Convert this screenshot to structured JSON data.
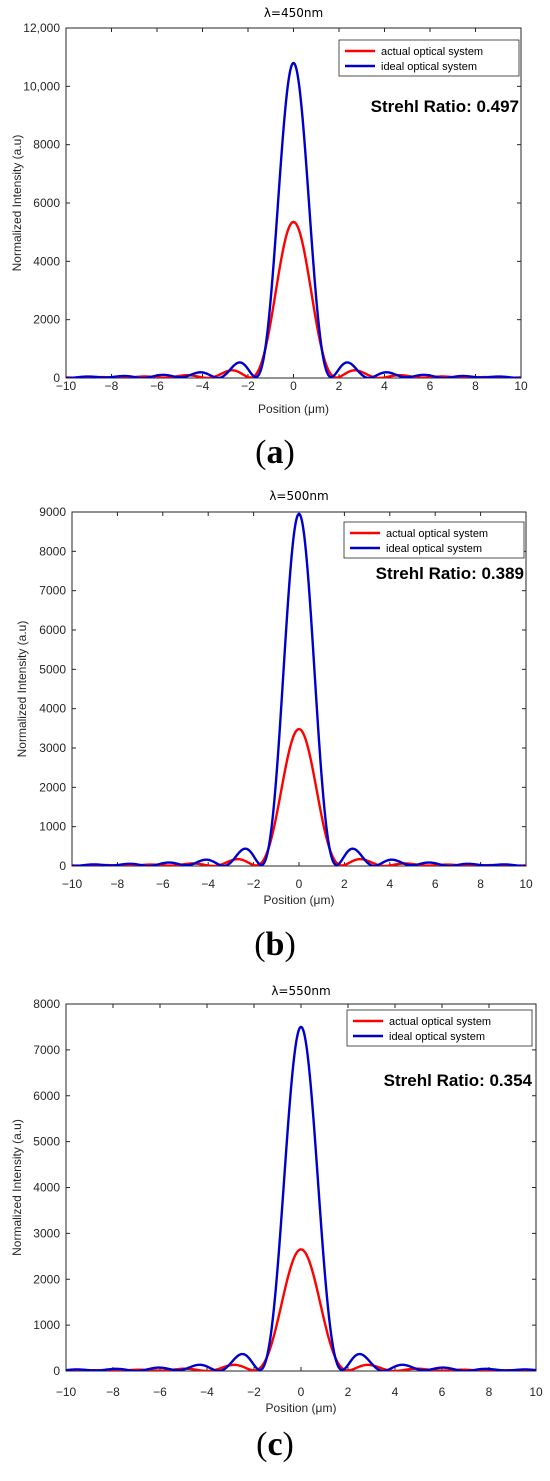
{
  "chart_data": [
    {
      "type": "line",
      "title": "λ=450nm",
      "xlabel": "Position (μm)",
      "ylabel": "Normalized Intensity (a.u)",
      "xlim": [
        -10,
        10
      ],
      "ylim": [
        0,
        12000
      ],
      "xticks": [
        -10,
        -8,
        -6,
        -4,
        -2,
        0,
        2,
        4,
        6,
        8,
        10
      ],
      "yticks": [
        0,
        2000,
        4000,
        6000,
        8000,
        10000,
        12000
      ],
      "ytick_labels": [
        "0",
        "2000",
        "4000",
        "6000",
        "8000",
        "10,000",
        "12,000"
      ],
      "annotation": "Strehl Ratio: 0.497",
      "caption": "a",
      "legend": "top-right",
      "series": [
        {
          "name": "actual optical system",
          "color": "#ff0000",
          "peak": 5350,
          "sidelobe": 120
        },
        {
          "name": "ideal optical system",
          "color": "#0000cc",
          "peak": 10800,
          "sidelobe": 250
        }
      ]
    },
    {
      "type": "line",
      "title": "λ=500nm",
      "xlabel": "Position (μm)",
      "ylabel": "Normalized Intensity (a.u)",
      "xlim": [
        -10,
        10
      ],
      "ylim": [
        0,
        9000
      ],
      "xticks": [
        -10,
        -8,
        -6,
        -4,
        -2,
        0,
        2,
        4,
        6,
        8,
        10
      ],
      "yticks": [
        0,
        1000,
        2000,
        3000,
        4000,
        5000,
        6000,
        7000,
        8000,
        9000
      ],
      "ytick_labels": [
        "0",
        "1000",
        "2000",
        "3000",
        "4000",
        "5000",
        "6000",
        "7000",
        "8000",
        "9000"
      ],
      "annotation": "Strehl Ratio: 0.389",
      "caption": "b",
      "legend": "top-right",
      "series": [
        {
          "name": "actual optical system",
          "color": "#ff0000",
          "peak": 3480,
          "sidelobe": 110
        },
        {
          "name": "ideal optical system",
          "color": "#0000cc",
          "peak": 8950,
          "sidelobe": 190
        }
      ]
    },
    {
      "type": "line",
      "title": "λ=550nm",
      "xlabel": "Position (μm)",
      "ylabel": "Normalized Intensity (a.u)",
      "xlim": [
        -10,
        10
      ],
      "ylim": [
        0,
        8000
      ],
      "xticks": [
        -10,
        -8,
        -6,
        -4,
        -2,
        0,
        2,
        4,
        6,
        8,
        10
      ],
      "yticks": [
        0,
        1000,
        2000,
        3000,
        4000,
        5000,
        6000,
        7000,
        8000
      ],
      "ytick_labels": [
        "0",
        "1000",
        "2000",
        "3000",
        "4000",
        "5000",
        "6000",
        "7000",
        "8000"
      ],
      "annotation": "Strehl Ratio: 0.354",
      "caption": "c",
      "legend": "top-right",
      "series": [
        {
          "name": "actual optical system",
          "color": "#ff0000",
          "peak": 2650,
          "sidelobe": 100
        },
        {
          "name": "ideal optical system",
          "color": "#0000cc",
          "peak": 7500,
          "sidelobe": 170
        }
      ]
    }
  ]
}
